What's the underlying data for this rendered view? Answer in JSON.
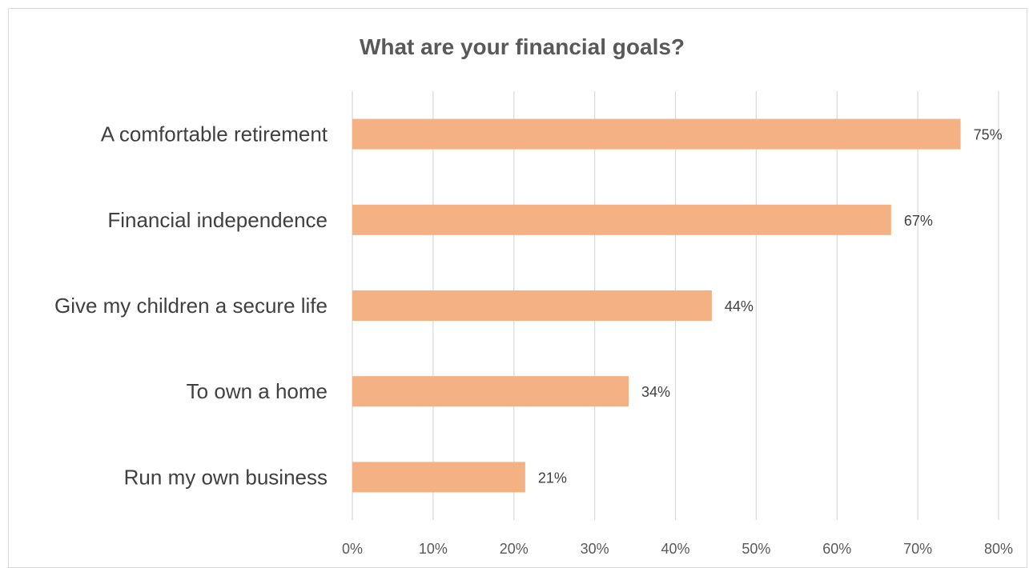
{
  "chart_data": {
    "type": "bar",
    "orientation": "horizontal",
    "title": "What are your financial goals?",
    "categories": [
      "A comfortable retirement",
      "Financial independence",
      "Give my children a secure life",
      "To own a home",
      "Run my own business"
    ],
    "values": [
      75.3,
      66.7,
      44.5,
      34.2,
      21.4
    ],
    "data_labels": [
      "75%",
      "67%",
      "44%",
      "34%",
      "21%"
    ],
    "xlim": [
      0,
      80
    ],
    "x_ticks": [
      0,
      10,
      20,
      30,
      40,
      50,
      60,
      70,
      80
    ],
    "x_tick_labels": [
      "0%",
      "10%",
      "20%",
      "30%",
      "40%",
      "50%",
      "60%",
      "70%",
      "80%"
    ],
    "grid": "vertical",
    "legend": "none",
    "bar_color": "#f4b183"
  }
}
